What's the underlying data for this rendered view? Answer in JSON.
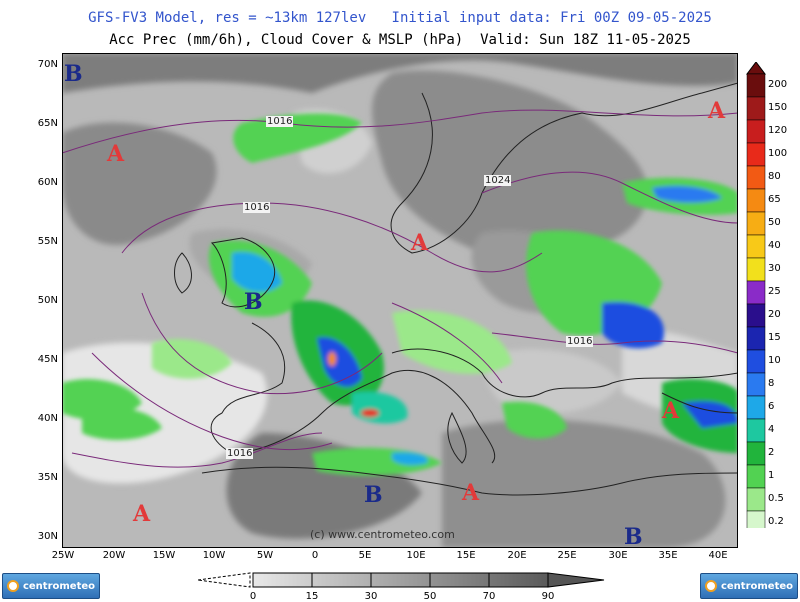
{
  "header": {
    "line1": "GFS-FV3 Model, res = ~13km 127lev   Initial input data: Fri 00Z 09-05-2025",
    "line2": "Acc Prec (mm/6h), Cloud Cover & MSLP (hPa)  Valid: Sun 18Z 11-05-2025"
  },
  "axes": {
    "lat_labels": [
      "70N",
      "65N",
      "60N",
      "55N",
      "50N",
      "45N",
      "40N",
      "35N",
      "30N"
    ],
    "lon_labels": [
      "25W",
      "20W",
      "15W",
      "10W",
      "5W",
      "0",
      "5E",
      "10E",
      "15E",
      "20E",
      "25E",
      "30E",
      "35E",
      "40E"
    ]
  },
  "pressure_centers": [
    {
      "letter": "B",
      "type": "low"
    },
    {
      "letter": "A",
      "type": "high"
    },
    {
      "letter": "A",
      "type": "high"
    },
    {
      "letter": "A",
      "type": "high"
    },
    {
      "letter": "B",
      "type": "low"
    },
    {
      "letter": "A",
      "type": "high"
    },
    {
      "letter": "B",
      "type": "low"
    },
    {
      "letter": "A",
      "type": "high"
    },
    {
      "letter": "A",
      "type": "high"
    },
    {
      "letter": "B",
      "type": "low"
    }
  ],
  "isobar_labels": [
    "1016",
    "1016",
    "1024",
    "1016",
    "1016"
  ],
  "credit": "(c) www.centrometeo.com",
  "precip_legend": {
    "values": [
      "200",
      "150",
      "120",
      "100",
      "80",
      "65",
      "50",
      "40",
      "30",
      "25",
      "20",
      "15",
      "10",
      "8",
      "6",
      "4",
      "2",
      "1",
      "0.5",
      "0.2"
    ],
    "colors": [
      "#6a0d0d",
      "#9e1a1a",
      "#c81e1e",
      "#e82a1a",
      "#f25a14",
      "#f58a12",
      "#f7ad14",
      "#f8c918",
      "#f2e01c",
      "#8a2bc8",
      "#2a0e8c",
      "#1b25b0",
      "#1f4ee0",
      "#2a7af0",
      "#1ea8e8",
      "#1ec8a0",
      "#21b43c",
      "#52d252",
      "#9be88a",
      "#d6f7cc"
    ]
  },
  "cloud_legend": {
    "ticks": [
      "0",
      "15",
      "30",
      "50",
      "70",
      "90"
    ]
  },
  "logos": {
    "left": "centrometeo",
    "right": "centrometeo"
  }
}
